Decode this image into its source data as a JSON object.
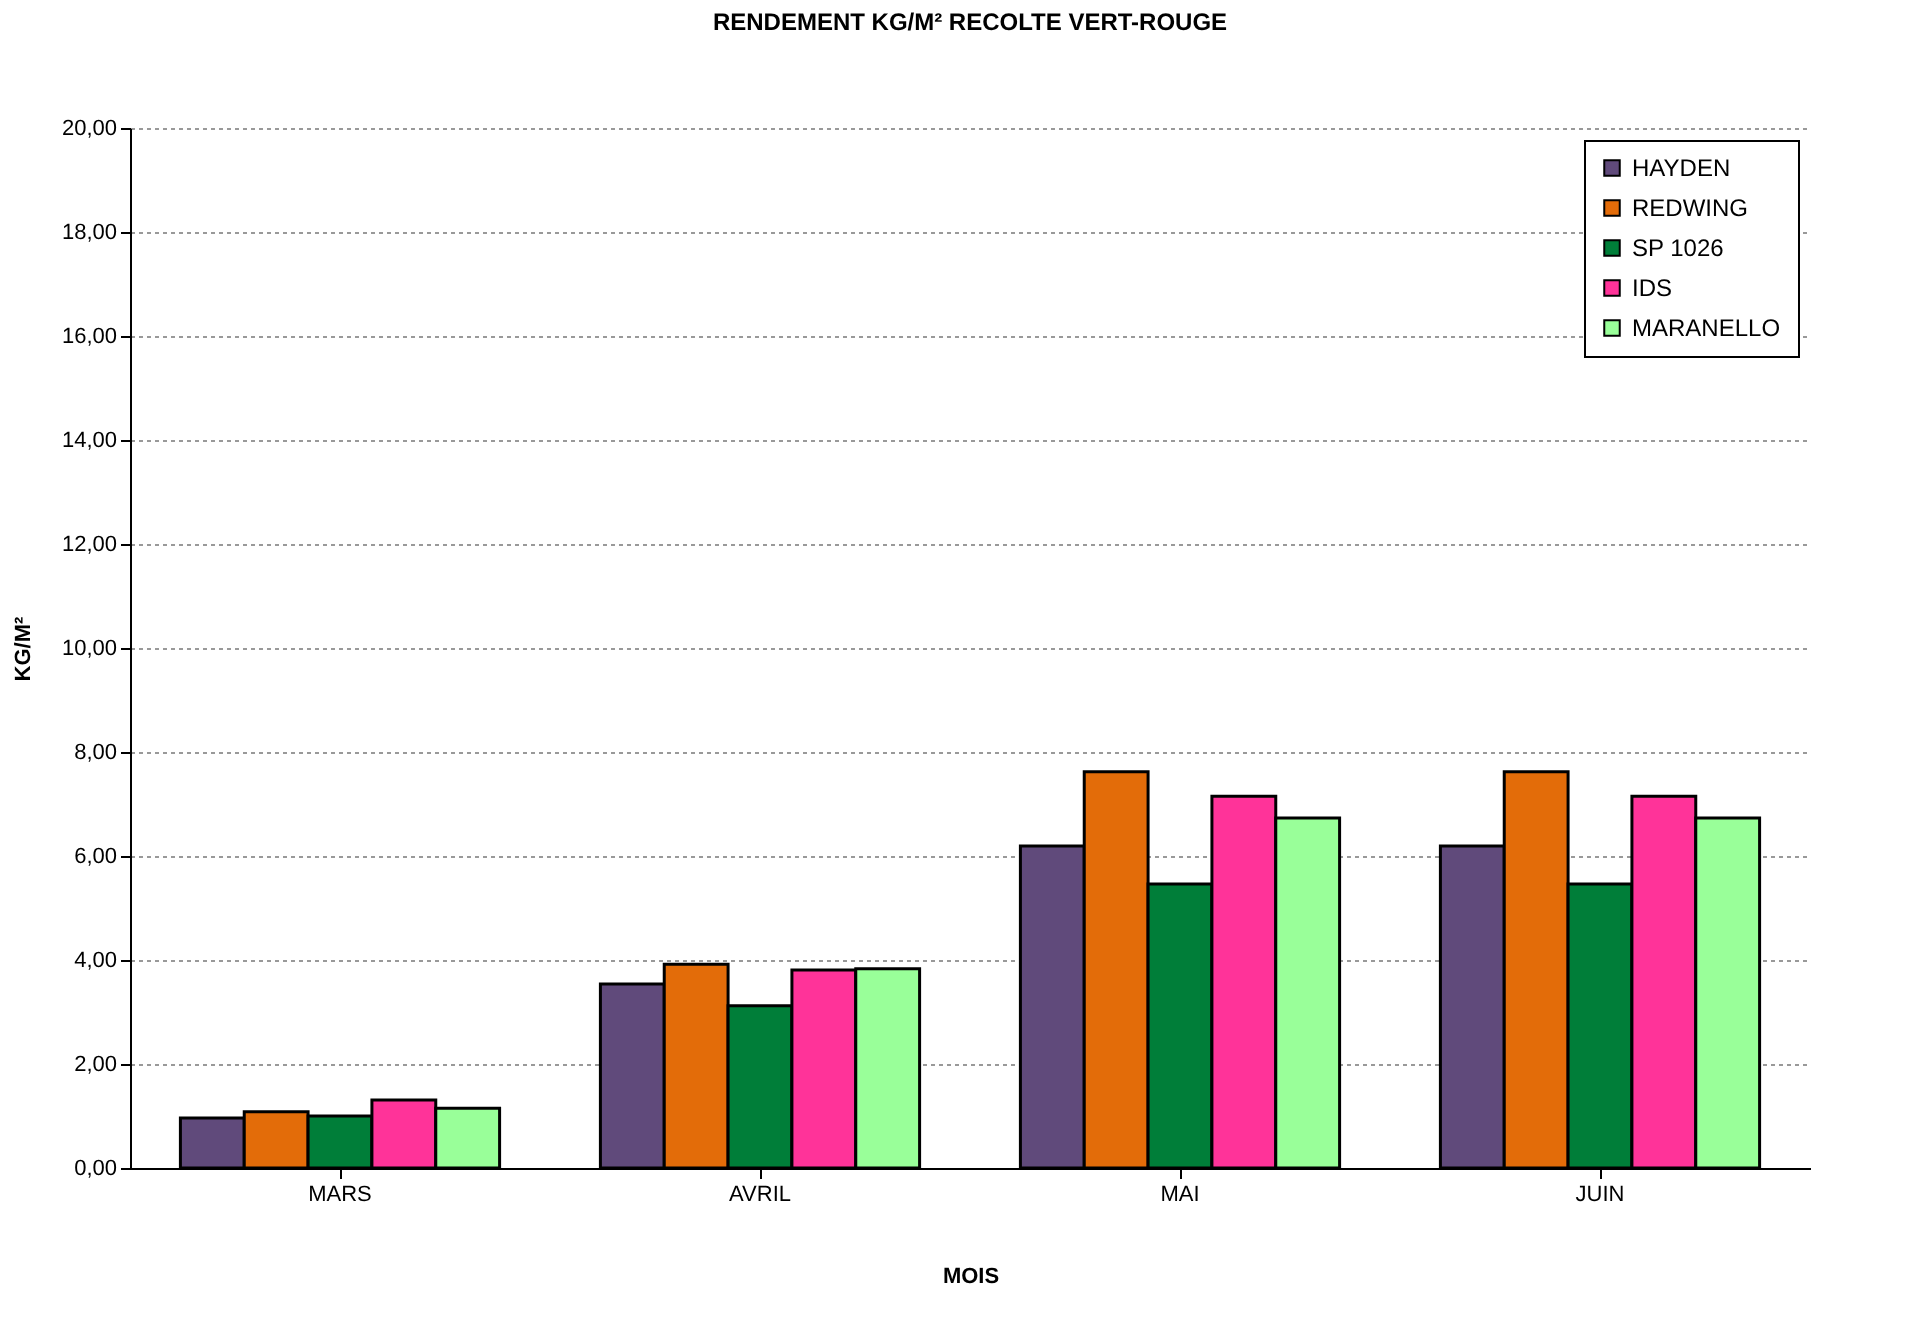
{
  "chart_data": {
    "type": "bar",
    "title": "RENDEMENT  KG/M²  RECOLTE  VERT-ROUGE",
    "xlabel": "MOIS",
    "ylabel": "KG/M²",
    "categories": [
      "MARS",
      "AVRIL",
      "MAI",
      "JUIN"
    ],
    "series": [
      {
        "name": "HAYDEN",
        "color": "#604a7b",
        "values": [
          0.96,
          3.54,
          6.19,
          6.19
        ]
      },
      {
        "name": "REDWING",
        "color": "#e36c09",
        "values": [
          1.08,
          3.92,
          7.62,
          7.62
        ]
      },
      {
        "name": "SP 1026",
        "color": "#007e39",
        "values": [
          1.0,
          3.12,
          5.46,
          5.46
        ]
      },
      {
        "name": "IDS",
        "color": "#ff3399",
        "values": [
          1.31,
          3.81,
          7.15,
          7.15
        ]
      },
      {
        "name": "MARANELLO",
        "color": "#99ff99",
        "values": [
          1.15,
          3.83,
          6.73,
          6.73
        ]
      }
    ],
    "ylim": [
      0,
      20
    ],
    "yticks": [
      {
        "value": 0,
        "label": "0,00"
      },
      {
        "value": 2,
        "label": "2,00"
      },
      {
        "value": 4,
        "label": "4,00"
      },
      {
        "value": 6,
        "label": "6,00"
      },
      {
        "value": 8,
        "label": "8,00"
      },
      {
        "value": 10,
        "label": "10,00"
      },
      {
        "value": 12,
        "label": "12,00"
      },
      {
        "value": 14,
        "label": "14,00"
      },
      {
        "value": 16,
        "label": "16,00"
      },
      {
        "value": 18,
        "label": "18,00"
      },
      {
        "value": 20,
        "label": "20,00"
      }
    ],
    "grid": "y",
    "legend": "top right"
  }
}
